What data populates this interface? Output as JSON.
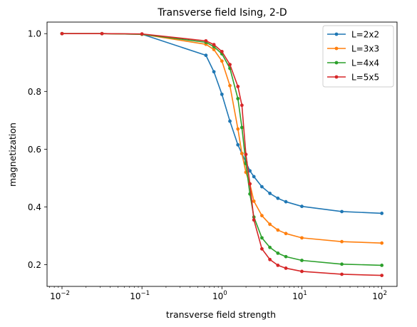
{
  "chart_data": {
    "type": "line",
    "title": "Transverse field Ising, 2-D",
    "xlabel": "transverse field strength",
    "ylabel": "magnetization",
    "xscale": "log",
    "xlim": [
      0.0065,
      155
    ],
    "ylim": [
      0.125,
      1.04
    ],
    "x_ticks": [
      {
        "value": 0.01,
        "base": "10",
        "exp": "−2"
      },
      {
        "value": 0.1,
        "base": "10",
        "exp": "−1"
      },
      {
        "value": 1,
        "base": "10",
        "exp": "0"
      },
      {
        "value": 10,
        "base": "10",
        "exp": "1"
      },
      {
        "value": 100,
        "base": "10",
        "exp": "2"
      }
    ],
    "y_ticks": [
      {
        "value": 0.2,
        "label": "0.2"
      },
      {
        "value": 0.4,
        "label": "0.4"
      },
      {
        "value": 0.6,
        "label": "0.6"
      },
      {
        "value": 0.8,
        "label": "0.8"
      },
      {
        "value": 1.0,
        "label": "1.0"
      }
    ],
    "grid": false,
    "legend_position": "top-right",
    "x": [
      0.01,
      0.0316,
      0.1,
      0.631,
      0.794,
      1.0,
      1.259,
      1.585,
      1.778,
      1.995,
      2.239,
      2.512,
      3.162,
      3.981,
      5.012,
      6.31,
      10,
      31.62,
      100
    ],
    "series": [
      {
        "name": "L=2x2",
        "color": "#1f77b4",
        "values": [
          1.0,
          1.0,
          0.998,
          0.925,
          0.868,
          0.79,
          0.697,
          0.615,
          0.585,
          0.555,
          0.525,
          0.505,
          0.47,
          0.447,
          0.43,
          0.418,
          0.402,
          0.384,
          0.378
        ]
      },
      {
        "name": "L=3x3",
        "color": "#ff7f0e",
        "values": [
          1.0,
          1.0,
          0.998,
          0.963,
          0.945,
          0.905,
          0.82,
          0.67,
          0.585,
          0.52,
          0.48,
          0.42,
          0.37,
          0.34,
          0.32,
          0.308,
          0.293,
          0.28,
          0.275
        ]
      },
      {
        "name": "L=4x4",
        "color": "#2ca02c",
        "values": [
          1.0,
          1.0,
          0.998,
          0.97,
          0.955,
          0.93,
          0.88,
          0.775,
          0.675,
          0.55,
          0.445,
          0.365,
          0.293,
          0.26,
          0.24,
          0.228,
          0.215,
          0.202,
          0.198
        ]
      },
      {
        "name": "L=5x5",
        "color": "#d62728",
        "values": [
          1.0,
          1.0,
          0.999,
          0.975,
          0.962,
          0.938,
          0.893,
          0.817,
          0.752,
          0.582,
          0.48,
          0.355,
          0.255,
          0.218,
          0.198,
          0.188,
          0.177,
          0.167,
          0.163
        ]
      }
    ]
  }
}
